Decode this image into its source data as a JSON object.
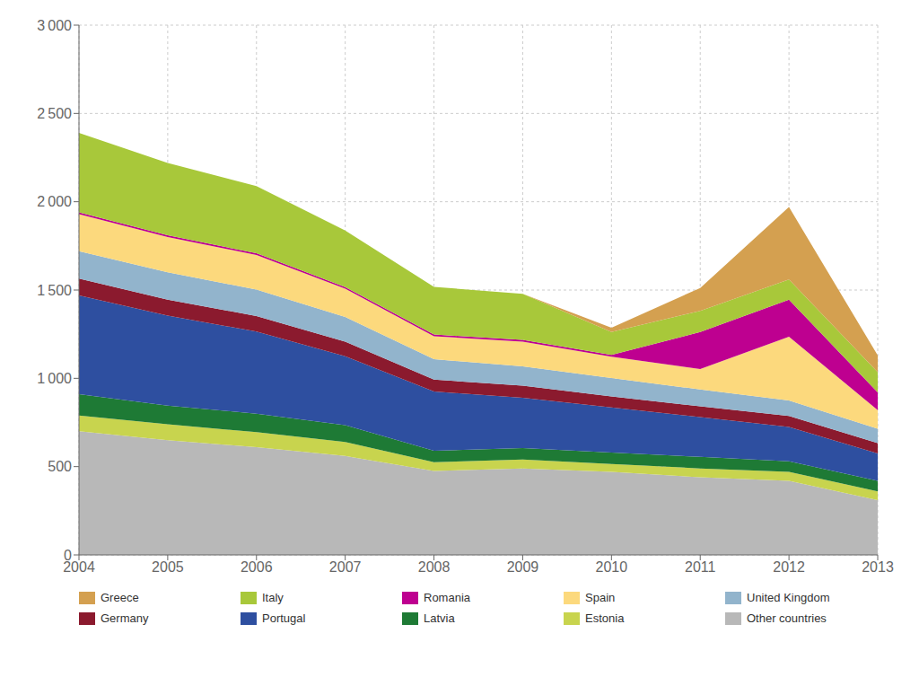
{
  "chart_data": {
    "type": "area",
    "stacked": true,
    "grid": true,
    "legend": "bottom",
    "x": [
      2004,
      2005,
      2006,
      2007,
      2008,
      2009,
      2010,
      2011,
      2012,
      2013
    ],
    "xlim": [
      2004,
      2013
    ],
    "xticks": [
      2004,
      2005,
      2006,
      2007,
      2008,
      2009,
      2010,
      2011,
      2012,
      2013
    ],
    "ylim": [
      0,
      3000
    ],
    "yticks": [
      0,
      500,
      {
        "value": 1000,
        "label": "1 000"
      },
      {
        "value": 1500,
        "label": "1 500"
      },
      {
        "value": 2000,
        "label": "2 000"
      },
      {
        "value": 2500,
        "label": "2 500"
      },
      {
        "value": 3000,
        "label": "3 000"
      }
    ],
    "series": [
      {
        "name": "Other countries",
        "color": "#b8b8b8",
        "values": [
          700,
          650,
          610,
          560,
          475,
          490,
          470,
          440,
          420,
          310
        ]
      },
      {
        "name": "Estonia",
        "color": "#c8d44e",
        "values": [
          90,
          90,
          85,
          80,
          50,
          50,
          45,
          50,
          50,
          50
        ]
      },
      {
        "name": "Latvia",
        "color": "#1e7a35",
        "values": [
          120,
          105,
          105,
          95,
          65,
          65,
          65,
          65,
          60,
          60
        ]
      },
      {
        "name": "Portugal",
        "color": "#2e4fa0",
        "values": [
          560,
          510,
          465,
          390,
          335,
          285,
          255,
          225,
          195,
          155
        ]
      },
      {
        "name": "Germany",
        "color": "#8b1a2e",
        "values": [
          95,
          90,
          88,
          82,
          68,
          68,
          62,
          62,
          62,
          58
        ]
      },
      {
        "name": "United Kingdom",
        "color": "#92b4cc",
        "values": [
          155,
          155,
          150,
          140,
          115,
          110,
          105,
          95,
          88,
          82
        ]
      },
      {
        "name": "Spain",
        "color": "#fcd97d",
        "values": [
          210,
          200,
          195,
          160,
          130,
          140,
          120,
          115,
          360,
          105
        ]
      },
      {
        "name": "Romania",
        "color": "#be0090",
        "values": [
          10,
          10,
          10,
          10,
          10,
          10,
          10,
          210,
          210,
          100
        ]
      },
      {
        "name": "Italy",
        "color": "#a8c83a",
        "values": [
          450,
          410,
          380,
          320,
          270,
          260,
          130,
          120,
          115,
          115
        ]
      },
      {
        "name": "Greece",
        "color": "#d4a050",
        "values": [
          0,
          0,
          0,
          0,
          0,
          0,
          25,
          130,
          410,
          95
        ]
      }
    ]
  }
}
